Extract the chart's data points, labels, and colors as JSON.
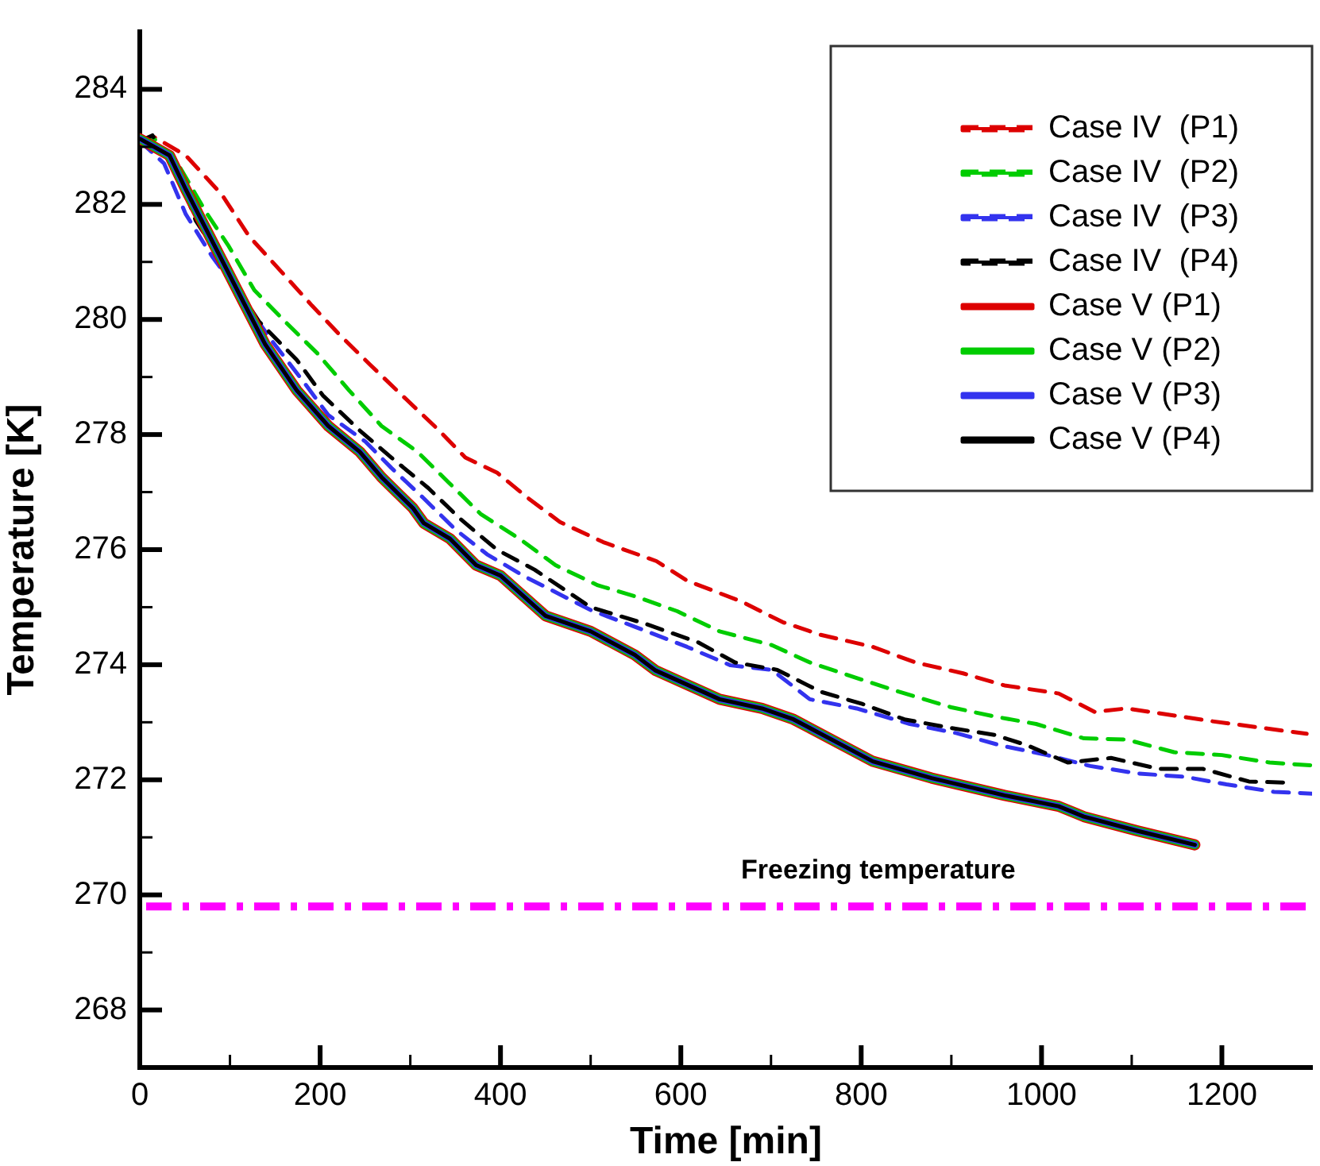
{
  "chart_data": {
    "type": "line",
    "xlabel": "Time [min]",
    "ylabel": "Temperature [K]",
    "xlim": [
      0,
      1300
    ],
    "xticks": [
      0,
      {
        "value": 100,
        "label": null
      },
      200,
      {
        "value": 300,
        "label": null
      },
      400,
      {
        "value": 500,
        "label": null
      },
      600,
      {
        "value": 700,
        "label": null
      },
      800,
      {
        "value": 900,
        "label": null
      },
      1000,
      {
        "value": 1100,
        "label": null
      },
      1200
    ],
    "ylim": [
      267,
      285
    ],
    "yticks": [
      {
        "value": 267,
        "label": null
      },
      268,
      {
        "value": 269,
        "label": null
      },
      270,
      {
        "value": 271,
        "label": null
      },
      272,
      {
        "value": 273,
        "label": null
      },
      274,
      {
        "value": 275,
        "label": null
      },
      276,
      {
        "value": 277,
        "label": null
      },
      278,
      {
        "value": 279,
        "label": null
      },
      280,
      {
        "value": 281,
        "label": null
      },
      282,
      {
        "value": 283,
        "label": null
      },
      284
    ],
    "grid": false,
    "legend": "top right",
    "marker": "none",
    "ref_lines": [
      {
        "axis": "y",
        "value": 269.8,
        "label": "Freezing temperature",
        "color": "#ff00ff",
        "line_style": "dashdot"
      }
    ],
    "series": [
      {
        "name": "Case IV  (P1)",
        "color": "#dd0000",
        "line_style": "dashed",
        "x": [
          0,
          16,
          51,
          91,
          121,
          157,
          191,
          220,
          255,
          291,
          332,
          361,
          396,
          431,
          466,
          514,
          573,
          607,
          667,
          713,
          755,
          813,
          860,
          913,
          959,
          1019,
          1059,
          1094,
          1142,
          1188,
          1241,
          1294
        ],
        "values": [
          283.1,
          283.17,
          282.85,
          282.17,
          281.45,
          280.83,
          280.24,
          279.76,
          279.22,
          278.68,
          278.07,
          277.6,
          277.34,
          276.89,
          276.48,
          276.13,
          275.8,
          275.46,
          275.1,
          274.74,
          274.52,
          274.31,
          274.04,
          273.85,
          273.64,
          273.5,
          273.18,
          273.24,
          273.13,
          273.02,
          272.91,
          272.8
        ]
      },
      {
        "name": "Case IV  (P2)",
        "color": "#00cc00",
        "line_style": "dashed",
        "x": [
          0,
          16,
          45,
          74,
          98,
          127,
          162,
          197,
          232,
          268,
          308,
          343,
          378,
          421,
          461,
          508,
          549,
          596,
          643,
          701,
          743,
          795,
          842,
          900,
          948,
          994,
          1047,
          1094,
          1147,
          1200,
          1253,
          1300
        ],
        "values": [
          283.1,
          283.14,
          282.63,
          281.85,
          281.29,
          280.51,
          279.95,
          279.41,
          278.77,
          278.15,
          277.7,
          277.16,
          276.62,
          276.19,
          275.73,
          275.38,
          275.19,
          274.93,
          274.58,
          274.34,
          274.04,
          273.77,
          273.53,
          273.26,
          273.1,
          272.97,
          272.72,
          272.7,
          272.48,
          272.43,
          272.3,
          272.25
        ]
      },
      {
        "name": "Case IV  (P3)",
        "color": "#3333ee",
        "line_style": "dashed",
        "x": [
          0,
          27,
          51,
          80,
          109,
          144,
          180,
          209,
          250,
          279,
          315,
          350,
          385,
          426,
          500,
          549,
          607,
          655,
          701,
          743,
          795,
          854,
          906,
          954,
          1006,
          1054,
          1107,
          1160,
          1205,
          1258,
          1300
        ],
        "values": [
          283.1,
          282.71,
          281.83,
          281.1,
          280.48,
          279.68,
          278.95,
          278.34,
          277.88,
          277.42,
          276.89,
          276.35,
          275.92,
          275.54,
          274.95,
          274.66,
          274.31,
          273.99,
          273.91,
          273.4,
          273.24,
          272.97,
          272.81,
          272.6,
          272.43,
          272.24,
          272.11,
          272.05,
          271.92,
          271.79,
          271.76
        ]
      },
      {
        "name": "Case IV  (P4)",
        "color": "#000000",
        "line_style": "dashed",
        "x": [
          0,
          14,
          45,
          62,
          80,
          104,
          132,
          174,
          203,
          244,
          279,
          320,
          355,
          396,
          438,
          500,
          561,
          619,
          660,
          707,
          755,
          801,
          848,
          896,
          948,
          984,
          1029,
          1077,
          1130,
          1179,
          1230,
          1276
        ],
        "values": [
          283.1,
          283.2,
          282.44,
          281.72,
          281.29,
          280.64,
          279.97,
          279.3,
          278.68,
          278.07,
          277.6,
          277.07,
          276.54,
          276.0,
          275.65,
          275.0,
          274.71,
          274.39,
          274.04,
          273.91,
          273.53,
          273.32,
          273.05,
          272.91,
          272.78,
          272.6,
          272.3,
          272.38,
          272.19,
          272.19,
          271.97,
          271.95
        ]
      },
      {
        "name": "Case V (P1)",
        "color": "#dd0000",
        "line_style": "solid",
        "x": [
          0,
          33,
          51,
          80,
          115,
          139,
          174,
          209,
          244,
          268,
          303,
          315,
          344,
          373,
          400,
          450,
          500,
          549,
          572,
          643,
          690,
          725,
          813,
          878,
          959,
          1019,
          1047,
          1107,
          1170
        ],
        "values": [
          283.14,
          282.85,
          282.26,
          281.37,
          280.3,
          279.57,
          278.77,
          278.15,
          277.7,
          277.26,
          276.72,
          276.46,
          276.19,
          275.73,
          275.55,
          274.85,
          274.58,
          274.17,
          273.9,
          273.4,
          273.24,
          273.05,
          272.32,
          272.03,
          271.73,
          271.54,
          271.36,
          271.11,
          270.87
        ]
      },
      {
        "name": "Case V (P2)",
        "color": "#00cc00",
        "line_style": "solid",
        "x": [
          0,
          33,
          51,
          80,
          115,
          139,
          174,
          209,
          244,
          268,
          303,
          315,
          344,
          373,
          400,
          450,
          500,
          549,
          572,
          643,
          690,
          725,
          813,
          878,
          959,
          1019,
          1047,
          1107,
          1170
        ],
        "values": [
          283.14,
          282.85,
          282.26,
          281.37,
          280.3,
          279.57,
          278.77,
          278.15,
          277.7,
          277.26,
          276.72,
          276.46,
          276.19,
          275.73,
          275.55,
          274.85,
          274.58,
          274.17,
          273.9,
          273.4,
          273.24,
          273.05,
          272.32,
          272.03,
          271.73,
          271.54,
          271.36,
          271.11,
          270.87
        ]
      },
      {
        "name": "Case V (P3)",
        "color": "#3333ee",
        "line_style": "solid",
        "x": [
          0,
          33,
          51,
          80,
          115,
          139,
          174,
          209,
          244,
          268,
          303,
          315,
          344,
          373,
          400,
          450,
          500,
          549,
          572,
          643,
          690,
          725,
          813,
          878,
          959,
          1019,
          1047,
          1107,
          1170
        ],
        "values": [
          283.14,
          282.85,
          282.26,
          281.37,
          280.3,
          279.57,
          278.77,
          278.15,
          277.7,
          277.26,
          276.72,
          276.46,
          276.19,
          275.73,
          275.55,
          274.85,
          274.58,
          274.17,
          273.9,
          273.4,
          273.24,
          273.05,
          272.32,
          272.03,
          271.73,
          271.54,
          271.36,
          271.11,
          270.87
        ]
      },
      {
        "name": "Case V (P4)",
        "color": "#000000",
        "line_style": "solid",
        "x": [
          0,
          33,
          51,
          80,
          115,
          139,
          174,
          209,
          244,
          268,
          303,
          315,
          344,
          373,
          400,
          450,
          500,
          549,
          572,
          643,
          690,
          725,
          813,
          878,
          959,
          1019,
          1047,
          1107,
          1170
        ],
        "values": [
          283.14,
          282.85,
          282.26,
          281.37,
          280.3,
          279.57,
          278.77,
          278.15,
          277.7,
          277.26,
          276.72,
          276.46,
          276.19,
          275.73,
          275.55,
          274.85,
          274.58,
          274.17,
          273.9,
          273.4,
          273.24,
          273.05,
          272.32,
          272.03,
          271.73,
          271.54,
          271.36,
          271.11,
          270.87
        ]
      }
    ]
  }
}
